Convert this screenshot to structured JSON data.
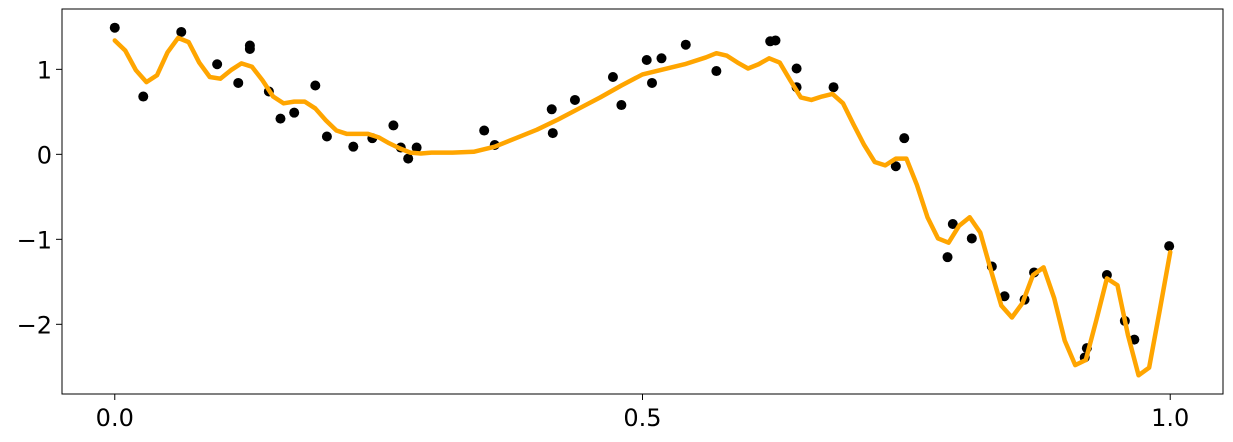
{
  "chart_data": [
    {
      "type": "scatter",
      "color": "#000000",
      "xlim": [
        -0.05,
        1.05
      ],
      "ylim": [
        -2.82,
        1.71
      ],
      "xticks": [
        {
          "value": 0,
          "label": "0.0"
        },
        {
          "value": 0.5,
          "label": "0.5"
        },
        {
          "value": 1,
          "label": "1.0"
        }
      ],
      "yticks": [
        {
          "value": -2,
          "label": "−2"
        },
        {
          "value": -1,
          "label": "−1"
        },
        0,
        1
      ],
      "x": [
        0,
        0.027,
        0.063,
        0.097,
        0.117,
        0.128,
        0.128,
        0.146,
        0.157,
        0.17,
        0.19,
        0.201,
        0.226,
        0.244,
        0.264,
        0.271,
        0.278,
        0.286,
        0.35,
        0.36,
        0.414,
        0.415,
        0.436,
        0.472,
        0.48,
        0.504,
        0.509,
        0.518,
        0.541,
        0.57,
        0.621,
        0.626,
        0.646,
        0.646,
        0.681,
        0.74,
        0.748,
        0.789,
        0.794,
        0.812,
        0.831,
        0.843,
        0.862,
        0.871,
        0.919,
        0.921,
        0.94,
        0.957,
        0.966,
        0.999
      ],
      "values": [
        1.49,
        0.68,
        1.44,
        1.06,
        0.84,
        1.28,
        1.24,
        0.74,
        0.42,
        0.49,
        0.81,
        0.21,
        0.09,
        0.19,
        0.34,
        0.08,
        -0.05,
        0.08,
        0.28,
        0.11,
        0.53,
        0.25,
        0.64,
        0.91,
        0.58,
        1.11,
        0.84,
        1.13,
        1.29,
        0.98,
        1.33,
        1.34,
        1.01,
        0.79,
        0.79,
        -0.14,
        0.19,
        -1.21,
        -0.82,
        -0.99,
        -1.32,
        -1.67,
        -1.71,
        -1.39,
        -2.39,
        -2.28,
        -1.42,
        -1.96,
        -2.18,
        -1.08
      ]
    },
    {
      "type": "line",
      "color": "#ffa500",
      "x": [
        0,
        0.01,
        0.02,
        0.03,
        0.04,
        0.05,
        0.06,
        0.07,
        0.08,
        0.09,
        0.1,
        0.11,
        0.12,
        0.13,
        0.14,
        0.15,
        0.16,
        0.17,
        0.18,
        0.19,
        0.2,
        0.21,
        0.22,
        0.23,
        0.24,
        0.25,
        0.26,
        0.27,
        0.28,
        0.29,
        0.3,
        0.32,
        0.34,
        0.36,
        0.38,
        0.4,
        0.42,
        0.44,
        0.46,
        0.48,
        0.5,
        0.52,
        0.54,
        0.56,
        0.57,
        0.58,
        0.59,
        0.6,
        0.61,
        0.62,
        0.63,
        0.64,
        0.65,
        0.66,
        0.67,
        0.68,
        0.69,
        0.7,
        0.71,
        0.72,
        0.73,
        0.74,
        0.75,
        0.76,
        0.77,
        0.78,
        0.79,
        0.8,
        0.81,
        0.82,
        0.83,
        0.84,
        0.85,
        0.86,
        0.87,
        0.88,
        0.89,
        0.9,
        0.91,
        0.92,
        0.93,
        0.94,
        0.95,
        0.96,
        0.97,
        0.98,
        0.99,
        1
      ],
      "values": [
        1.34,
        1.22,
        0.99,
        0.85,
        0.93,
        1.2,
        1.37,
        1.32,
        1.08,
        0.91,
        0.89,
        0.99,
        1.07,
        1.03,
        0.87,
        0.68,
        0.6,
        0.62,
        0.62,
        0.54,
        0.4,
        0.28,
        0.24,
        0.24,
        0.24,
        0.2,
        0.13,
        0.07,
        0.02,
        0.01,
        0.02,
        0.02,
        0.03,
        0.09,
        0.19,
        0.29,
        0.41,
        0.54,
        0.67,
        0.81,
        0.94,
        1.0,
        1.06,
        1.14,
        1.19,
        1.16,
        1.08,
        1.01,
        1.06,
        1.13,
        1.08,
        0.87,
        0.67,
        0.64,
        0.68,
        0.71,
        0.6,
        0.35,
        0.11,
        -0.09,
        -0.13,
        -0.05,
        -0.05,
        -0.36,
        -0.74,
        -0.99,
        -1.04,
        -0.84,
        -0.74,
        -0.92,
        -1.36,
        -1.78,
        -1.92,
        -1.75,
        -1.42,
        -1.33,
        -1.69,
        -2.19,
        -2.48,
        -2.42,
        -1.95,
        -1.46,
        -1.54,
        -2.13,
        -2.6,
        -2.51,
        -1.84,
        -1.15
      ]
    }
  ]
}
